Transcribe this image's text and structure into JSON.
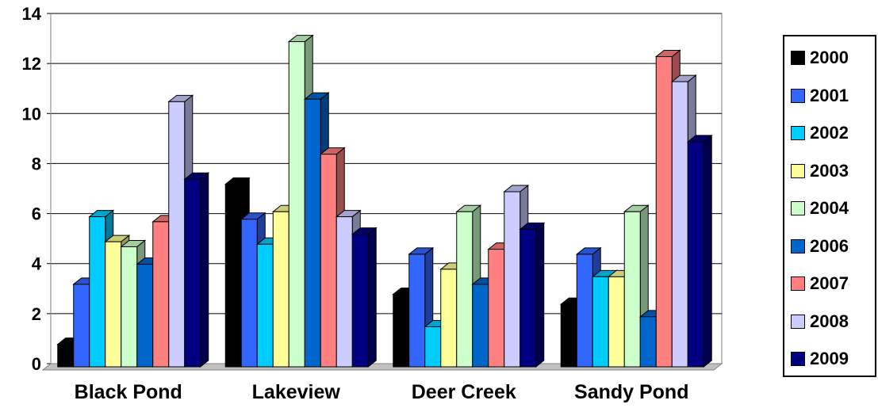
{
  "chart_data": {
    "type": "bar",
    "title": "",
    "xlabel": "",
    "ylabel": "",
    "categories": [
      "Black Pond",
      "Lakeview",
      "Deer Creek",
      "Sandy Pond"
    ],
    "ylim": [
      0,
      14
    ],
    "yticks": [
      "0",
      "2",
      "4",
      "6",
      "8",
      "10",
      "12",
      "14"
    ],
    "grid": "horizontal",
    "legend_position": "right",
    "three_d": true,
    "series": [
      {
        "name": "2000",
        "color": "#000000",
        "values": [
          0.9,
          7.3,
          2.9,
          2.5
        ]
      },
      {
        "name": "2001",
        "color": "#3366ff",
        "values": [
          3.3,
          5.9,
          4.5,
          4.5
        ]
      },
      {
        "name": "2002",
        "color": "#00ccff",
        "values": [
          6.0,
          4.9,
          1.6,
          3.6
        ]
      },
      {
        "name": "2003",
        "color": "#ffff99",
        "values": [
          5.0,
          6.2,
          3.9,
          3.6
        ]
      },
      {
        "name": "2004",
        "color": "#ccffcc",
        "values": [
          4.8,
          13.0,
          6.2,
          6.2
        ]
      },
      {
        "name": "2006",
        "color": "#0066cc",
        "values": [
          4.1,
          10.7,
          3.3,
          2.0
        ]
      },
      {
        "name": "2007",
        "color": "#ff8080",
        "values": [
          5.8,
          8.5,
          4.7,
          12.4
        ]
      },
      {
        "name": "2008",
        "color": "#ccccff",
        "values": [
          10.6,
          6.0,
          7.0,
          11.4
        ]
      },
      {
        "name": "2009",
        "color": "#000080",
        "values": [
          7.5,
          5.3,
          5.5,
          9.0
        ]
      }
    ]
  }
}
